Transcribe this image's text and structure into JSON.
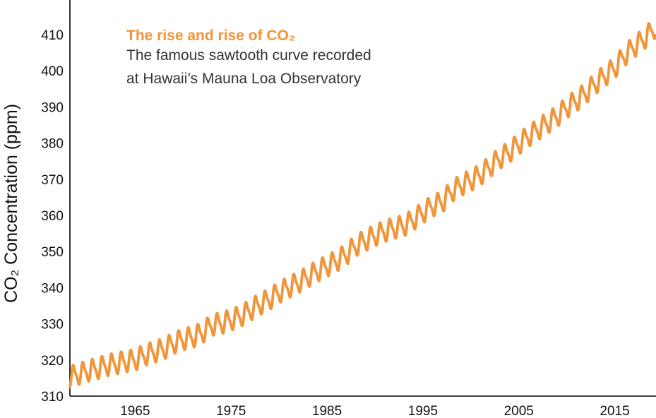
{
  "chart_data": {
    "type": "line",
    "title": "The rise and rise of CO₂",
    "subtitle_lines": [
      "The famous sawtooth curve recorded",
      "at Hawaii’s Mauna Loa Observatory"
    ],
    "ylabel": "CO₂ Concentration (ppm)",
    "xlabel": "",
    "xlim": [
      1958.2,
      2019.3
    ],
    "ylim": [
      310,
      415
    ],
    "x_ticks": [
      1965,
      1975,
      1985,
      1995,
      2005,
      2015
    ],
    "y_ticks": [
      310,
      320,
      330,
      340,
      350,
      360,
      370,
      380,
      390,
      400,
      410
    ],
    "grid": false,
    "series": [
      {
        "name": "",
        "color": "#f0953a",
        "seasonal_amplitude_ppm": 3,
        "annual_mean": {
          "x": [
            1959,
            1960,
            1961,
            1962,
            1963,
            1964,
            1965,
            1966,
            1967,
            1968,
            1969,
            1970,
            1971,
            1972,
            1973,
            1974,
            1975,
            1976,
            1977,
            1978,
            1979,
            1980,
            1981,
            1982,
            1983,
            1984,
            1985,
            1986,
            1987,
            1988,
            1989,
            1990,
            1991,
            1992,
            1993,
            1994,
            1995,
            1996,
            1997,
            1998,
            1999,
            2000,
            2001,
            2002,
            2003,
            2004,
            2005,
            2006,
            2007,
            2008,
            2009,
            2010,
            2011,
            2012,
            2013,
            2014,
            2015,
            2016,
            2017,
            2018,
            2019
          ],
          "y": [
            316.0,
            316.9,
            317.6,
            318.5,
            319.0,
            319.6,
            320.0,
            321.4,
            322.2,
            323.1,
            324.6,
            325.7,
            326.3,
            327.5,
            329.7,
            330.2,
            331.1,
            332.1,
            333.8,
            335.4,
            336.8,
            338.7,
            340.1,
            341.4,
            343.0,
            344.6,
            346.0,
            347.4,
            349.2,
            351.6,
            353.1,
            354.4,
            355.6,
            356.5,
            357.1,
            358.8,
            360.8,
            362.6,
            363.7,
            366.7,
            368.4,
            369.7,
            371.3,
            373.5,
            375.8,
            377.5,
            379.8,
            381.9,
            383.8,
            385.6,
            387.4,
            389.9,
            391.7,
            393.9,
            396.5,
            398.7,
            400.8,
            404.2,
            406.6,
            408.7,
            411.4
          ]
        }
      }
    ]
  }
}
